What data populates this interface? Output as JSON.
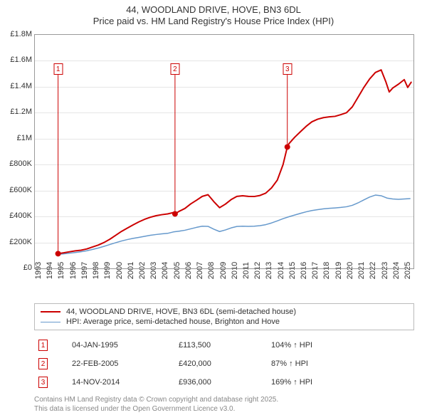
{
  "title": {
    "line1": "44, WOODLAND DRIVE, HOVE, BN3 6DL",
    "line2": "Price paid vs. HM Land Registry's House Price Index (HPI)",
    "fontsize": 13,
    "color": "#333333"
  },
  "chart": {
    "type": "line",
    "background_color": "#ffffff",
    "grid_color": "#e5e5e5",
    "axis_color": "#999999",
    "x": {
      "min": 1993,
      "max": 2025.8,
      "ticks": [
        1993,
        1994,
        1995,
        1996,
        1997,
        1998,
        1999,
        2000,
        2001,
        2002,
        2003,
        2004,
        2005,
        2006,
        2007,
        2008,
        2009,
        2010,
        2011,
        2012,
        2013,
        2014,
        2015,
        2016,
        2017,
        2018,
        2019,
        2020,
        2021,
        2022,
        2023,
        2024,
        2025
      ],
      "tick_fontsize": 11
    },
    "y": {
      "min": 0,
      "max": 1800000,
      "ticks": [
        0,
        200000,
        400000,
        600000,
        800000,
        1000000,
        1200000,
        1400000,
        1600000,
        1800000
      ],
      "tick_labels": [
        "£0",
        "£200K",
        "£400K",
        "£600K",
        "£800K",
        "£1M",
        "£1.2M",
        "£1.4M",
        "£1.6M",
        "£1.8M"
      ],
      "tick_fontsize": 11
    },
    "series": [
      {
        "name": "price_paid",
        "label": "44, WOODLAND DRIVE, HOVE, BN3 6DL (semi-detached house)",
        "color": "#cc0000",
        "line_width": 2,
        "points": [
          [
            1995.01,
            113500
          ],
          [
            1995.5,
            120000
          ],
          [
            1996,
            128000
          ],
          [
            1996.5,
            135000
          ],
          [
            1997,
            140000
          ],
          [
            1997.5,
            150000
          ],
          [
            1998,
            165000
          ],
          [
            1998.5,
            180000
          ],
          [
            1999,
            200000
          ],
          [
            1999.5,
            225000
          ],
          [
            2000,
            255000
          ],
          [
            2000.5,
            285000
          ],
          [
            2001,
            310000
          ],
          [
            2001.5,
            335000
          ],
          [
            2002,
            358000
          ],
          [
            2002.5,
            378000
          ],
          [
            2003,
            394000
          ],
          [
            2003.5,
            406000
          ],
          [
            2004,
            414000
          ],
          [
            2004.5,
            420000
          ],
          [
            2005,
            430000
          ],
          [
            2005.14,
            420000
          ],
          [
            2005.5,
            440000
          ],
          [
            2006,
            462000
          ],
          [
            2006.5,
            497000
          ],
          [
            2007,
            525000
          ],
          [
            2007.5,
            555000
          ],
          [
            2008,
            568000
          ],
          [
            2008.5,
            515000
          ],
          [
            2009,
            468000
          ],
          [
            2009.5,
            495000
          ],
          [
            2010,
            530000
          ],
          [
            2010.5,
            555000
          ],
          [
            2011,
            560000
          ],
          [
            2011.5,
            555000
          ],
          [
            2012,
            554000
          ],
          [
            2012.5,
            562000
          ],
          [
            2013,
            580000
          ],
          [
            2013.5,
            620000
          ],
          [
            2014,
            680000
          ],
          [
            2014.5,
            800000
          ],
          [
            2014.87,
            936000
          ],
          [
            2015,
            960000
          ],
          [
            2015.5,
            1010000
          ],
          [
            2016,
            1053000
          ],
          [
            2016.5,
            1095000
          ],
          [
            2017,
            1130000
          ],
          [
            2017.5,
            1150000
          ],
          [
            2018,
            1162000
          ],
          [
            2018.5,
            1168000
          ],
          [
            2019,
            1172000
          ],
          [
            2019.5,
            1185000
          ],
          [
            2020,
            1200000
          ],
          [
            2020.5,
            1245000
          ],
          [
            2021,
            1320000
          ],
          [
            2021.5,
            1395000
          ],
          [
            2022,
            1460000
          ],
          [
            2022.5,
            1510000
          ],
          [
            2023,
            1530000
          ],
          [
            2023.4,
            1440000
          ],
          [
            2023.7,
            1360000
          ],
          [
            2024,
            1390000
          ],
          [
            2024.5,
            1420000
          ],
          [
            2025,
            1455000
          ],
          [
            2025.3,
            1395000
          ],
          [
            2025.6,
            1435000
          ]
        ]
      },
      {
        "name": "hpi",
        "label": "HPI: Average price, semi-detached house, Brighton and Hove",
        "color": "#6699cc",
        "line_width": 1.5,
        "points": [
          [
            1995.01,
            109000
          ],
          [
            1995.5,
            112000
          ],
          [
            1996,
            117000
          ],
          [
            1996.5,
            122000
          ],
          [
            1997,
            128000
          ],
          [
            1997.5,
            136000
          ],
          [
            1998,
            146000
          ],
          [
            1998.5,
            157000
          ],
          [
            1999,
            170000
          ],
          [
            1999.5,
            184000
          ],
          [
            2000,
            198000
          ],
          [
            2000.5,
            211000
          ],
          [
            2001,
            222000
          ],
          [
            2001.5,
            231000
          ],
          [
            2002,
            239000
          ],
          [
            2002.5,
            247000
          ],
          [
            2003,
            255000
          ],
          [
            2003.5,
            261000
          ],
          [
            2004,
            266000
          ],
          [
            2004.5,
            270000
          ],
          [
            2005,
            281000
          ],
          [
            2005.5,
            287000
          ],
          [
            2006,
            294000
          ],
          [
            2006.5,
            305000
          ],
          [
            2007,
            316000
          ],
          [
            2007.5,
            325000
          ],
          [
            2008,
            324000
          ],
          [
            2008.5,
            302000
          ],
          [
            2009,
            284000
          ],
          [
            2009.5,
            296000
          ],
          [
            2010,
            312000
          ],
          [
            2010.5,
            323000
          ],
          [
            2011,
            325000
          ],
          [
            2011.5,
            324000
          ],
          [
            2012,
            325000
          ],
          [
            2012.5,
            329000
          ],
          [
            2013,
            337000
          ],
          [
            2013.5,
            350000
          ],
          [
            2014,
            366000
          ],
          [
            2014.5,
            383000
          ],
          [
            2015,
            398000
          ],
          [
            2015.5,
            411000
          ],
          [
            2016,
            424000
          ],
          [
            2016.5,
            436000
          ],
          [
            2017,
            446000
          ],
          [
            2017.5,
            453000
          ],
          [
            2018,
            459000
          ],
          [
            2018.5,
            463000
          ],
          [
            2019,
            466000
          ],
          [
            2019.5,
            470000
          ],
          [
            2020,
            475000
          ],
          [
            2020.5,
            486000
          ],
          [
            2021,
            505000
          ],
          [
            2021.5,
            528000
          ],
          [
            2022,
            550000
          ],
          [
            2022.5,
            565000
          ],
          [
            2023,
            560000
          ],
          [
            2023.5,
            542000
          ],
          [
            2024,
            535000
          ],
          [
            2024.5,
            532000
          ],
          [
            2025,
            535000
          ],
          [
            2025.5,
            538000
          ]
        ]
      }
    ],
    "sale_markers": [
      {
        "n": "1",
        "x": 1995.01,
        "y": 113500,
        "box_top_y": 1580000
      },
      {
        "n": "2",
        "x": 2005.14,
        "y": 420000,
        "box_top_y": 1580000
      },
      {
        "n": "3",
        "x": 2014.87,
        "y": 936000,
        "box_top_y": 1580000
      }
    ],
    "marker_radius": 4
  },
  "legend": {
    "border_color": "#bbbbbb",
    "fontsize": 11,
    "items": [
      {
        "color": "#cc0000",
        "width": 2,
        "label": "44, WOODLAND DRIVE, HOVE, BN3 6DL (semi-detached house)"
      },
      {
        "color": "#6699cc",
        "width": 1.5,
        "label": "HPI: Average price, semi-detached house, Brighton and Hove"
      }
    ]
  },
  "sales_table": {
    "fontsize": 11,
    "marker_border_color": "#cc0000",
    "rows": [
      {
        "n": "1",
        "date": "04-JAN-1995",
        "price": "£113,500",
        "pct": "104% ↑ HPI"
      },
      {
        "n": "2",
        "date": "22-FEB-2005",
        "price": "£420,000",
        "pct": "87% ↑ HPI"
      },
      {
        "n": "3",
        "date": "14-NOV-2014",
        "price": "£936,000",
        "pct": "169% ↑ HPI"
      }
    ]
  },
  "attribution": {
    "line1": "Contains HM Land Registry data © Crown copyright and database right 2025.",
    "line2": "This data is licensed under the Open Government Licence v3.0.",
    "color": "#888888",
    "fontsize": 10
  }
}
